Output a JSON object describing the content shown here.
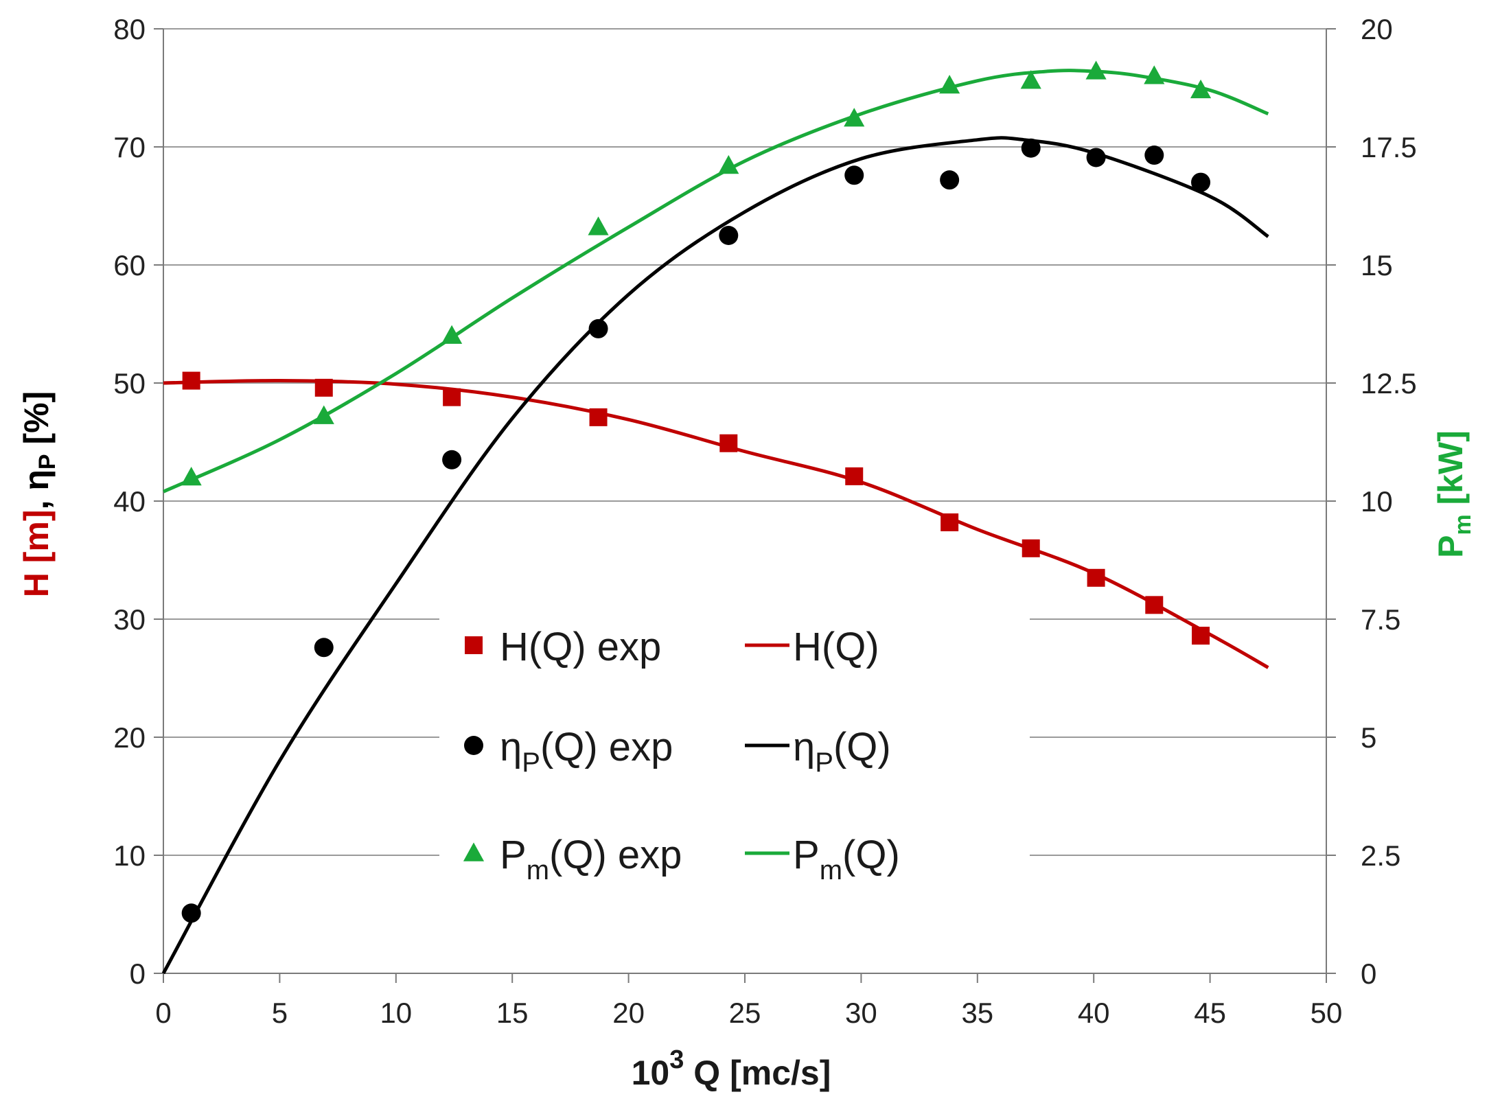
{
  "chart_data": {
    "type": "line",
    "title": "",
    "xlabel": {
      "base": "10",
      "sup": "3",
      "rest": "Q [mc/s]"
    },
    "ylabel_left": {
      "part1": "H [m]",
      "sep": ", ",
      "eta": "η",
      "eta_sub": "P",
      "part2": " [%]",
      "part1_color": "#c00000",
      "part2_color": "#000000"
    },
    "ylabel_right": {
      "main": "P",
      "sub": "m",
      "rest": " [kW]",
      "color": "#1aaa3a"
    },
    "xlim": [
      0,
      50
    ],
    "ylim_left": [
      0,
      80
    ],
    "ylim_right": [
      0,
      20
    ],
    "xticks": [
      "0",
      "5",
      "10",
      "15",
      "20",
      "25",
      "30",
      "35",
      "40",
      "45",
      "50"
    ],
    "yticks_left": [
      "0",
      "10",
      "20",
      "30",
      "40",
      "50",
      "60",
      "70",
      "80"
    ],
    "yticks_right": [
      "0",
      "2.5",
      "5",
      "7.5",
      "10",
      "12.5",
      "15",
      "17.5",
      "20"
    ],
    "grid": true,
    "colors": {
      "H": "#c00000",
      "eta": "#000000",
      "Pm": "#1aaa3a",
      "grid": "#9a9a9a"
    },
    "series": [
      {
        "name": "H(Q) exp",
        "kind": "scatter",
        "marker": "square",
        "axis": "left",
        "color_key": "H",
        "x": [
          1.2,
          6.9,
          12.4,
          18.7,
          24.3,
          29.7,
          33.8,
          37.3,
          40.1,
          42.6,
          44.6
        ],
        "y": [
          50.2,
          49.6,
          48.8,
          47.1,
          44.9,
          42.1,
          38.2,
          36.0,
          33.5,
          31.2,
          28.6
        ]
      },
      {
        "name": "H(Q)",
        "kind": "line",
        "axis": "left",
        "color_key": "H",
        "x": [
          0,
          5,
          10,
          15,
          20,
          25,
          30,
          35,
          40,
          45,
          47.5
        ],
        "y": [
          50.0,
          50.2,
          49.9,
          48.8,
          46.9,
          44.2,
          41.6,
          37.6,
          33.9,
          28.7,
          25.9
        ]
      },
      {
        "name": "ηP(Q) exp",
        "kind": "scatter",
        "marker": "circle",
        "axis": "left",
        "color_key": "eta",
        "x": [
          1.2,
          6.9,
          12.4,
          18.7,
          24.3,
          29.7,
          33.8,
          37.3,
          40.1,
          42.6,
          44.6
        ],
        "y": [
          5.1,
          27.6,
          43.5,
          54.6,
          62.5,
          67.6,
          67.2,
          69.9,
          69.1,
          69.3,
          67.0
        ]
      },
      {
        "name": "ηP(Q)",
        "kind": "line",
        "axis": "left",
        "color_key": "eta",
        "x": [
          0,
          5,
          10,
          15,
          20,
          25,
          30,
          35,
          37,
          40,
          45,
          47.5
        ],
        "y": [
          0,
          18.0,
          33.0,
          47.0,
          57.5,
          64.5,
          69.0,
          70.6,
          70.6,
          69.5,
          65.8,
          62.4
        ]
      },
      {
        "name": "Pm(Q) exp",
        "kind": "scatter",
        "marker": "triangle",
        "axis": "right",
        "color_key": "Pm",
        "x": [
          1.2,
          6.9,
          12.4,
          18.7,
          24.3,
          29.7,
          33.8,
          37.3,
          40.1,
          42.6,
          44.6
        ],
        "y": [
          10.5,
          11.8,
          13.5,
          15.8,
          17.1,
          18.1,
          18.8,
          18.9,
          19.1,
          19.0,
          18.7
        ]
      },
      {
        "name": "Pm(Q)",
        "kind": "line",
        "axis": "right",
        "color_key": "Pm",
        "x": [
          0,
          5,
          10,
          15,
          20,
          25,
          30,
          35,
          38,
          40,
          42,
          45,
          47.5
        ],
        "y": [
          10.2,
          11.3,
          12.7,
          14.3,
          15.8,
          17.2,
          18.2,
          18.9,
          19.1,
          19.1,
          19.0,
          18.7,
          18.2
        ]
      }
    ],
    "legend": {
      "position": "center-bottom",
      "entries": [
        {
          "main": "H(Q) exp",
          "sub": "",
          "tail": "",
          "series": 0
        },
        {
          "main": "H(Q)",
          "sub": "",
          "tail": "",
          "series": 1
        },
        {
          "main": "η",
          "sub": "P",
          "tail": "(Q) exp",
          "series": 2
        },
        {
          "main": "η",
          "sub": "P",
          "tail": "(Q)",
          "series": 3
        },
        {
          "main": "P",
          "sub": "m",
          "tail": "(Q) exp",
          "series": 4
        },
        {
          "main": "P",
          "sub": "m",
          "tail": "(Q)",
          "series": 5
        }
      ]
    }
  }
}
